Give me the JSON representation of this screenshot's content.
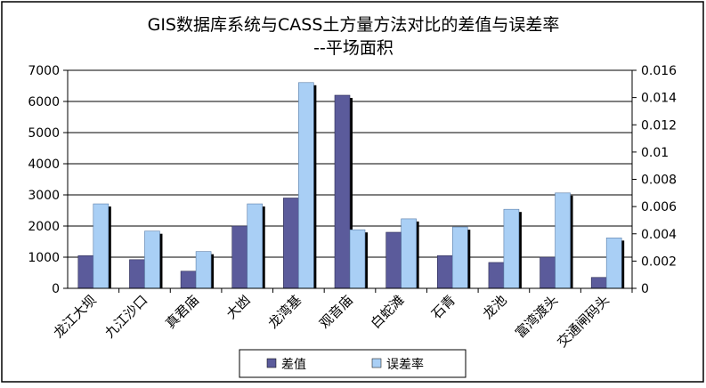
{
  "chart_data": {
    "type": "bar",
    "title": "GIS数据库系统与CASS土方量方法对比的差值与误差率",
    "subtitle": "--平场面积",
    "categories": [
      "龙江大坝",
      "九江沙口",
      "真君庙",
      "大凼",
      "龙湾基",
      "观音庙",
      "白蛇滩",
      "石青",
      "龙池",
      "富湾渡头",
      "交通闸码头"
    ],
    "series": [
      {
        "name": "差值",
        "axis": "left",
        "color": "#5b5b9b",
        "values": [
          1050,
          920,
          550,
          2000,
          2900,
          6200,
          1800,
          1050,
          830,
          1000,
          350
        ]
      },
      {
        "name": "误差率",
        "axis": "right",
        "color": "#a9cff5",
        "values": [
          0.0062,
          0.0042,
          0.0027,
          0.0062,
          0.0151,
          0.0043,
          0.0051,
          0.0045,
          0.0058,
          0.007,
          0.0037
        ]
      }
    ],
    "y_left": {
      "ylim": [
        0,
        7000
      ],
      "ticks": [
        0,
        1000,
        2000,
        3000,
        4000,
        5000,
        6000,
        7000
      ],
      "tick_labels": [
        "0",
        "1000",
        "2000",
        "3000",
        "4000",
        "5000",
        "6000",
        "7000"
      ]
    },
    "y_right": {
      "ylim": [
        0,
        0.016
      ],
      "ticks": [
        0,
        0.002,
        0.004,
        0.006,
        0.008,
        0.01,
        0.012,
        0.014,
        0.016
      ],
      "tick_labels": [
        "0",
        "0.002",
        "0.004",
        "0.006",
        "0.008",
        "0.01",
        "0.012",
        "0.014",
        "0.016"
      ]
    },
    "grid": true,
    "legend": {
      "position": "bottom",
      "entries": [
        "差值",
        "误差率"
      ]
    }
  }
}
